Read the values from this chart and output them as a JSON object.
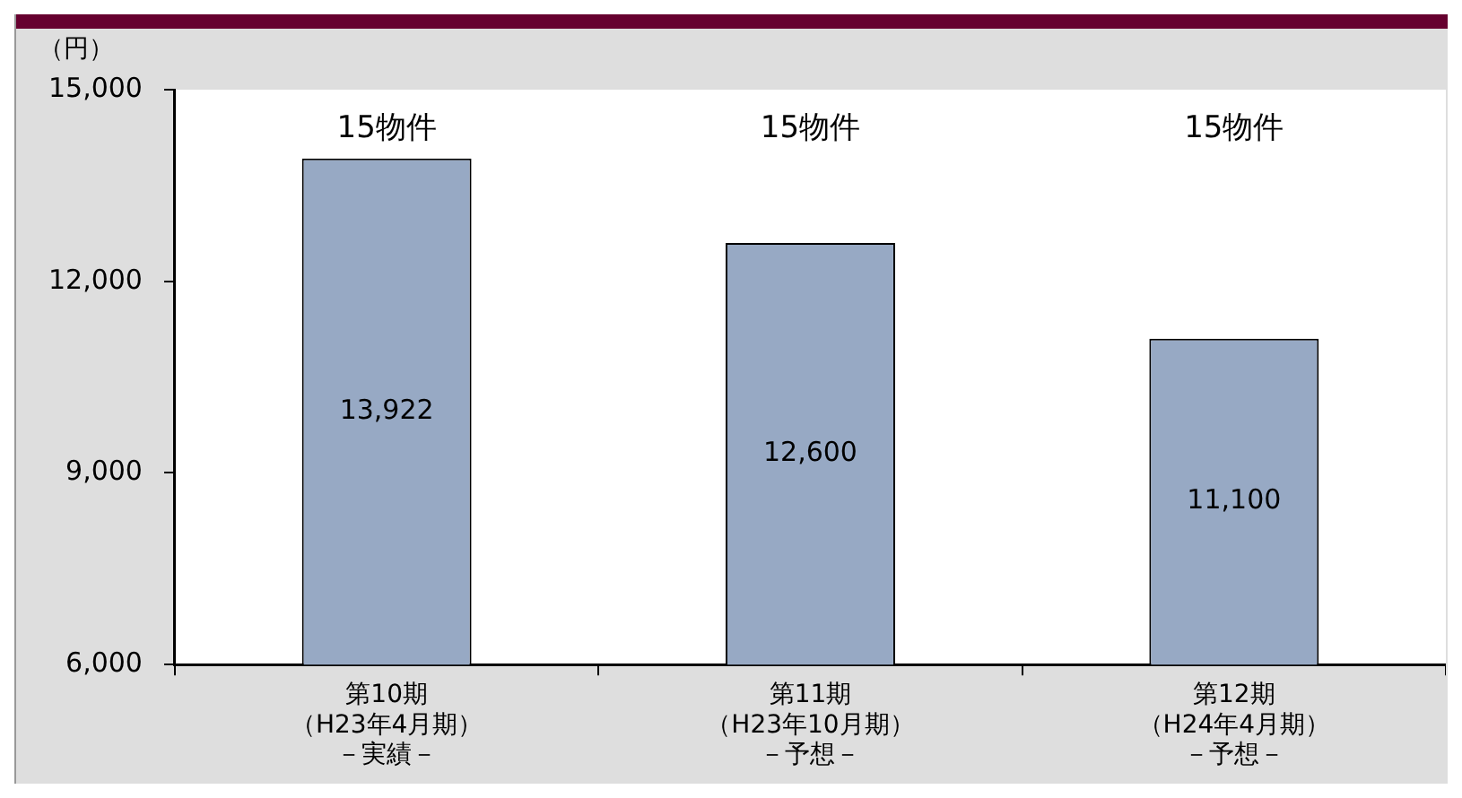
{
  "chart_data": {
    "type": "bar",
    "ylabel": "（円）",
    "categories": [
      "第10期（H23年4月期）－実績－",
      "第11期（H23年10月期）－予想－",
      "第12期（H24年4月期）－予想－"
    ],
    "values": [
      13922,
      12600,
      11100
    ],
    "value_labels": [
      "13,922",
      "12,600",
      "11,100"
    ],
    "color": "#97a9c4",
    "ylim": [
      6000,
      15000
    ],
    "yticks": [
      {
        "value": 6000,
        "label": "6,000"
      },
      {
        "value": 9000,
        "label": "9,000"
      },
      {
        "value": 12000,
        "label": "12,000"
      },
      {
        "value": 15000,
        "label": "15,000"
      }
    ],
    "grid": false,
    "legend": false,
    "annotations": [
      "15物件",
      "15物件",
      "15物件"
    ]
  }
}
